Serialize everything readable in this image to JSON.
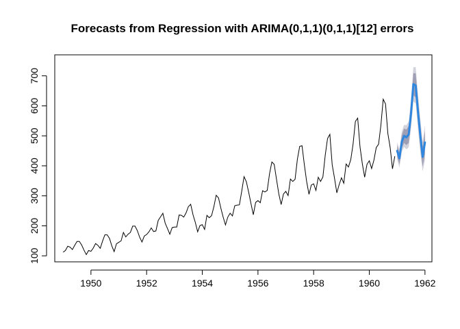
{
  "chart_data": {
    "type": "line",
    "title": "Forecasts from Regression with ARIMA(0,1,1)(0,1,1)[12] errors",
    "xlabel": "",
    "ylabel": "",
    "xlim": [
      1948.7,
      1962.25
    ],
    "ylim": [
      80,
      770
    ],
    "x_ticks": [
      1950,
      1952,
      1954,
      1956,
      1958,
      1960,
      1962
    ],
    "x_tick_labels": [
      "1950",
      "1952",
      "1954",
      "1956",
      "1958",
      "1960",
      "1962"
    ],
    "y_ticks": [
      100,
      200,
      300,
      400,
      500,
      600,
      700
    ],
    "y_tick_labels": [
      "100",
      "200",
      "300",
      "400",
      "500",
      "600",
      "700"
    ],
    "grid": false,
    "legend": "none",
    "colors": {
      "history": "#000000",
      "forecast": "#2E86DE",
      "band_80": "#9E9EB4",
      "band_95": "#D2D2DC"
    },
    "series": [
      {
        "role": "history",
        "x_start": 1949.0,
        "x_step": 0.08333,
        "values": [
          112,
          118,
          132,
          129,
          121,
          135,
          148,
          148,
          136,
          119,
          104,
          118,
          115,
          126,
          141,
          135,
          125,
          149,
          170,
          170,
          158,
          133,
          114,
          140,
          145,
          150,
          178,
          163,
          172,
          178,
          199,
          199,
          184,
          162,
          146,
          166,
          171,
          180,
          193,
          181,
          183,
          218,
          230,
          242,
          209,
          191,
          172,
          194,
          196,
          196,
          236,
          235,
          229,
          243,
          264,
          272,
          237,
          211,
          180,
          201,
          204,
          188,
          235,
          227,
          234,
          264,
          302,
          293,
          259,
          229,
          203,
          229,
          242,
          233,
          267,
          269,
          270,
          315,
          364,
          347,
          312,
          274,
          237,
          278,
          284,
          277,
          317,
          313,
          318,
          374,
          413,
          405,
          355,
          306,
          271,
          306,
          315,
          301,
          356,
          348,
          355,
          422,
          465,
          467,
          404,
          347,
          305,
          336,
          340,
          318,
          362,
          348,
          363,
          435,
          491,
          505,
          404,
          359,
          310,
          337,
          360,
          342,
          406,
          396,
          420,
          472,
          548,
          559,
          463,
          407,
          362,
          405,
          417,
          391,
          419,
          461,
          472,
          535,
          622,
          606,
          508,
          461,
          390,
          432
        ]
      },
      {
        "role": "forecast",
        "x_start": 1961.0,
        "x_step": 0.08333,
        "values": [
          450,
          425,
          480,
          500,
          495,
          505,
          575,
          672,
          668,
          580,
          500,
          430,
          478
        ],
        "lower_80": [
          432,
          405,
          458,
          476,
          469,
          477,
          543,
          635,
          628,
          542,
          463,
          398,
          440
        ],
        "upper_80": [
          468,
          445,
          502,
          524,
          521,
          533,
          607,
          709,
          708,
          618,
          537,
          462,
          516
        ],
        "lower_95": [
          422,
          394,
          446,
          463,
          455,
          462,
          526,
          615,
          607,
          522,
          444,
          381,
          420
        ],
        "upper_95": [
          478,
          456,
          514,
          537,
          535,
          548,
          624,
          729,
          729,
          638,
          556,
          479,
          536
        ]
      }
    ]
  }
}
